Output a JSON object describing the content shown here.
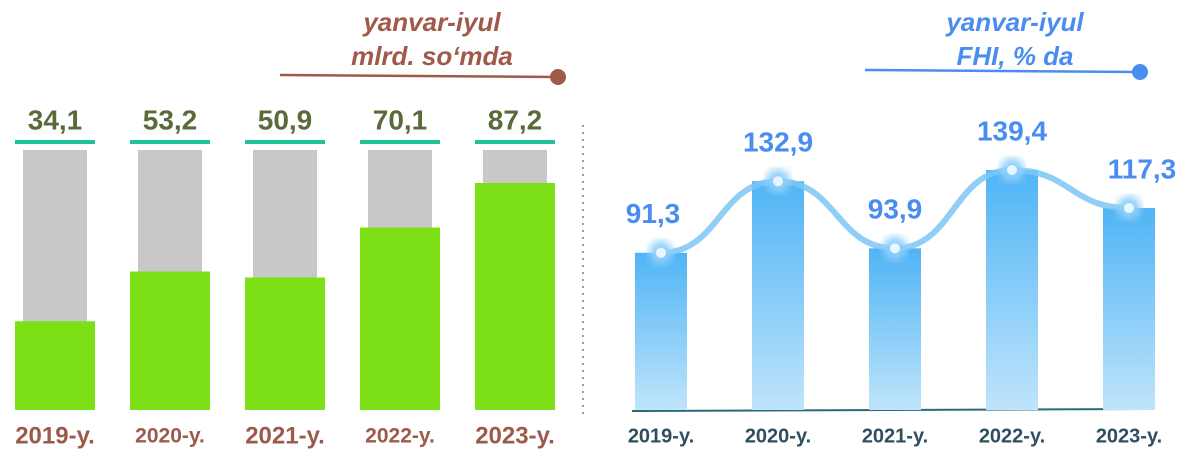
{
  "chart_data": [
    {
      "type": "bar",
      "title": "yanvar-iyul",
      "subtitle": "mlrd. so‘mda",
      "categories": [
        "2019-y.",
        "2020-y.",
        "2021-y.",
        "2022-y.",
        "2023-y."
      ],
      "values": [
        34.1,
        53.2,
        50.9,
        70.1,
        87.2
      ],
      "value_labels": [
        "34,1",
        "53,2",
        "50,9",
        "70,1",
        "87,2"
      ],
      "color": "#7ddf16"
    },
    {
      "type": "bar_line",
      "title": "yanvar-iyul",
      "subtitle": "FHI, % da",
      "categories": [
        "2019-y.",
        "2020-y.",
        "2021-y.",
        "2022-y.",
        "2023-y."
      ],
      "values": [
        91.3,
        132.9,
        93.9,
        139.4,
        117.3
      ],
      "value_labels": [
        "91,3",
        "132,9",
        "93,9",
        "139,4",
        "117,3"
      ],
      "color": "#4a8df0"
    }
  ]
}
